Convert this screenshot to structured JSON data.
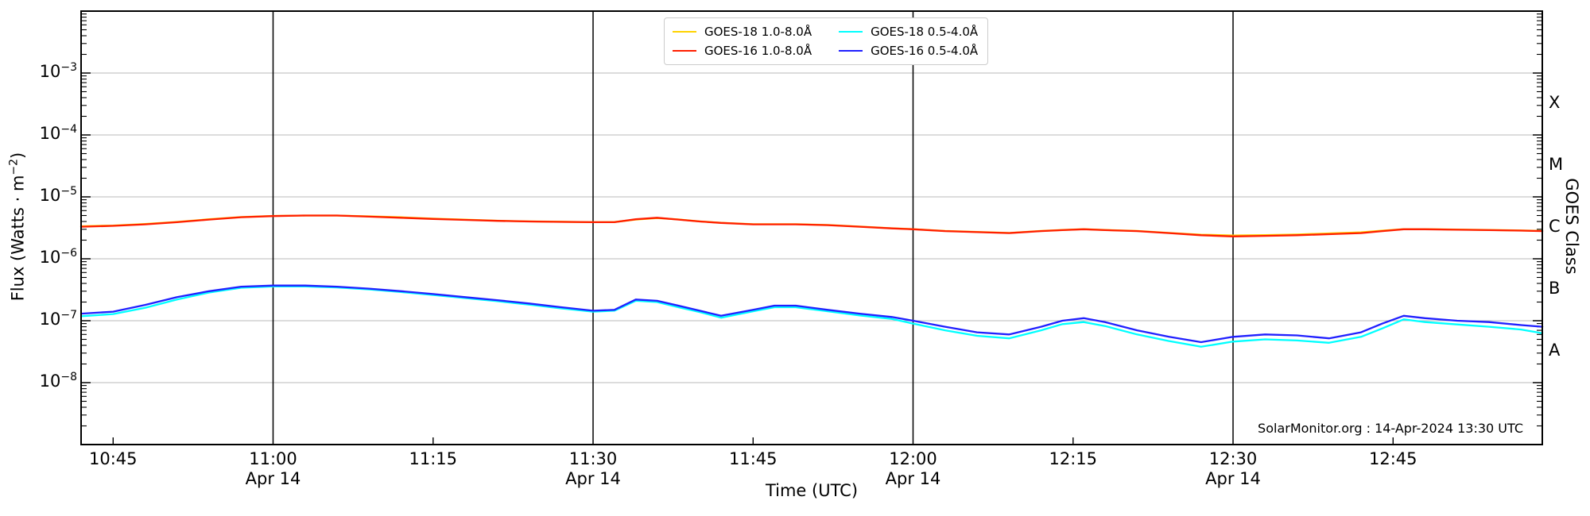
{
  "figure": {
    "credit": "SolarMonitor.org : 14-Apr-2024 13:30 UTC",
    "xlabel": "Time (UTC)",
    "ylabel_parts": {
      "pre": "Flux (Watts · m",
      "sup": "−2",
      "post": ")"
    },
    "right_axis_label": "GOES Class",
    "goes_class_labels": [
      {
        "text": "X",
        "log_center": -3.5
      },
      {
        "text": "M",
        "log_center": -4.5
      },
      {
        "text": "C",
        "log_center": -5.5
      },
      {
        "text": "B",
        "log_center": -6.5
      },
      {
        "text": "A",
        "log_center": -7.5
      }
    ]
  },
  "chart_data": {
    "type": "line",
    "title": "",
    "xlabel": "Time (UTC)",
    "ylabel": "Flux (Watts · m−2)",
    "grid": "horizontal-gray-plus-vertical-black-at-half-hours",
    "legend_position": "top-center",
    "yaxis": {
      "scale": "log",
      "ylim": [
        1e-09,
        0.01
      ],
      "tick_labels": [
        {
          "base": "10",
          "exp": "−3",
          "log": -3
        },
        {
          "base": "10",
          "exp": "−4",
          "log": -4
        },
        {
          "base": "10",
          "exp": "−5",
          "log": -5
        },
        {
          "base": "10",
          "exp": "−6",
          "log": -6
        },
        {
          "base": "10",
          "exp": "−7",
          "log": -7
        },
        {
          "base": "10",
          "exp": "−8",
          "log": -8
        }
      ]
    },
    "xaxis": {
      "xlim": [
        "10:42",
        "12:59"
      ],
      "ticks": [
        {
          "label": "10:45"
        },
        {
          "label": "11:00",
          "day": "Apr 14",
          "vline": true
        },
        {
          "label": "11:15"
        },
        {
          "label": "11:30",
          "day": "Apr 14",
          "vline": true
        },
        {
          "label": "11:45"
        },
        {
          "label": "12:00",
          "day": "Apr 14",
          "vline": true
        },
        {
          "label": "12:15"
        },
        {
          "label": "12:30",
          "day": "Apr 14",
          "vline": true
        },
        {
          "label": "12:45"
        }
      ]
    },
    "x": [
      "10:42",
      "10:45",
      "10:48",
      "10:51",
      "10:54",
      "10:57",
      "11:00",
      "11:03",
      "11:06",
      "11:09",
      "11:12",
      "11:15",
      "11:18",
      "11:21",
      "11:24",
      "11:27",
      "11:30",
      "11:32",
      "11:34",
      "11:36",
      "11:38",
      "11:40",
      "11:42",
      "11:45",
      "11:47",
      "11:49",
      "11:52",
      "11:55",
      "11:58",
      "12:00",
      "12:03",
      "12:06",
      "12:09",
      "12:12",
      "12:14",
      "12:16",
      "12:18",
      "12:21",
      "12:24",
      "12:27",
      "12:30",
      "12:33",
      "12:36",
      "12:39",
      "12:42",
      "12:44",
      "12:46",
      "12:48",
      "12:51",
      "12:54",
      "12:57",
      "12:59"
    ],
    "series": [
      {
        "name": "GOES-18 1.0-8.0Å",
        "color": "#ffd300",
        "values": [
          3.35e-06,
          3.45e-06,
          3.65e-06,
          3.95e-06,
          4.35e-06,
          4.72e-06,
          4.92e-06,
          5e-06,
          5e-06,
          4.85e-06,
          4.68e-06,
          4.45e-06,
          4.3e-06,
          4.12e-06,
          4.02e-06,
          3.97e-06,
          3.9e-06,
          3.92e-06,
          4.3e-06,
          4.55e-06,
          4.32e-06,
          4.02e-06,
          3.82e-06,
          3.62e-06,
          3.62e-06,
          3.62e-06,
          3.52e-06,
          3.32e-06,
          3.12e-06,
          3.02e-06,
          2.82e-06,
          2.72e-06,
          2.62e-06,
          2.82e-06,
          2.92e-06,
          3.02e-06,
          2.92e-06,
          2.82e-06,
          2.62e-06,
          2.45e-06,
          2.38e-06,
          2.42e-06,
          2.47e-06,
          2.57e-06,
          2.67e-06,
          2.85e-06,
          3.02e-06,
          3.02e-06,
          2.97e-06,
          2.92e-06,
          2.87e-06,
          2.82e-06
        ]
      },
      {
        "name": "GOES-16 1.0-8.0Å",
        "color": "#ff1e00",
        "values": [
          3.3e-06,
          3.4e-06,
          3.6e-06,
          3.9e-06,
          4.3e-06,
          4.7e-06,
          4.9e-06,
          5e-06,
          5e-06,
          4.8e-06,
          4.6e-06,
          4.4e-06,
          4.25e-06,
          4.1e-06,
          4e-06,
          3.95e-06,
          3.9e-06,
          3.9e-06,
          4.35e-06,
          4.6e-06,
          4.3e-06,
          4e-06,
          3.8e-06,
          3.6e-06,
          3.6e-06,
          3.6e-06,
          3.5e-06,
          3.3e-06,
          3.1e-06,
          3e-06,
          2.8e-06,
          2.7e-06,
          2.6e-06,
          2.8e-06,
          2.9e-06,
          3e-06,
          2.9e-06,
          2.8e-06,
          2.6e-06,
          2.4e-06,
          2.3e-06,
          2.35e-06,
          2.4e-06,
          2.5e-06,
          2.6e-06,
          2.8e-06,
          3e-06,
          3e-06,
          2.95e-06,
          2.9e-06,
          2.85e-06,
          2.8e-06
        ]
      },
      {
        "name": "GOES-18 0.5-4.0Å",
        "color": "#00ffff",
        "values": [
          1.18e-07,
          1.28e-07,
          1.62e-07,
          2.2e-07,
          2.85e-07,
          3.4e-07,
          3.58e-07,
          3.58e-07,
          3.45e-07,
          3.2e-07,
          2.9e-07,
          2.6e-07,
          2.32e-07,
          2.07e-07,
          1.82e-07,
          1.58e-07,
          1.4e-07,
          1.45e-07,
          2.1e-07,
          2e-07,
          1.65e-07,
          1.38e-07,
          1.12e-07,
          1.42e-07,
          1.65e-07,
          1.65e-07,
          1.42e-07,
          1.22e-07,
          1.07e-07,
          9e-08,
          7e-08,
          5.7e-08,
          5.2e-08,
          7e-08,
          8.8e-08,
          9.5e-08,
          8.2e-08,
          6e-08,
          4.7e-08,
          3.8e-08,
          4.6e-08,
          5e-08,
          4.8e-08,
          4.4e-08,
          5.5e-08,
          7.5e-08,
          1.05e-07,
          9.5e-08,
          8.7e-08,
          8e-08,
          7.2e-08,
          6.3e-08
        ]
      },
      {
        "name": "GOES-16 0.5-4.0Å",
        "color": "#2020ff",
        "values": [
          1.3e-07,
          1.4e-07,
          1.8e-07,
          2.4e-07,
          3e-07,
          3.55e-07,
          3.7e-07,
          3.7e-07,
          3.55e-07,
          3.3e-07,
          3e-07,
          2.7e-07,
          2.4e-07,
          2.15e-07,
          1.9e-07,
          1.65e-07,
          1.45e-07,
          1.5e-07,
          2.2e-07,
          2.1e-07,
          1.75e-07,
          1.45e-07,
          1.2e-07,
          1.5e-07,
          1.75e-07,
          1.75e-07,
          1.5e-07,
          1.3e-07,
          1.15e-07,
          1e-07,
          8e-08,
          6.5e-08,
          6e-08,
          8e-08,
          1e-07,
          1.1e-07,
          9.5e-08,
          7e-08,
          5.5e-08,
          4.5e-08,
          5.5e-08,
          6e-08,
          5.8e-08,
          5.2e-08,
          6.5e-08,
          9e-08,
          1.2e-07,
          1.1e-07,
          1e-07,
          9.5e-08,
          8.5e-08,
          8e-08
        ]
      }
    ],
    "legend": {
      "items": [
        {
          "label": "GOES-18 1.0-8.0Å",
          "color": "#ffd300"
        },
        {
          "label": "GOES-16 1.0-8.0Å",
          "color": "#ff1e00"
        },
        {
          "label": "GOES-18 0.5-4.0Å",
          "color": "#00ffff"
        },
        {
          "label": "GOES-16 0.5-4.0Å",
          "color": "#2020ff"
        }
      ]
    },
    "colors": {
      "grid": "#b9b9b9",
      "vline": "#000000",
      "border": "#000000",
      "background": "#ffffff"
    }
  }
}
